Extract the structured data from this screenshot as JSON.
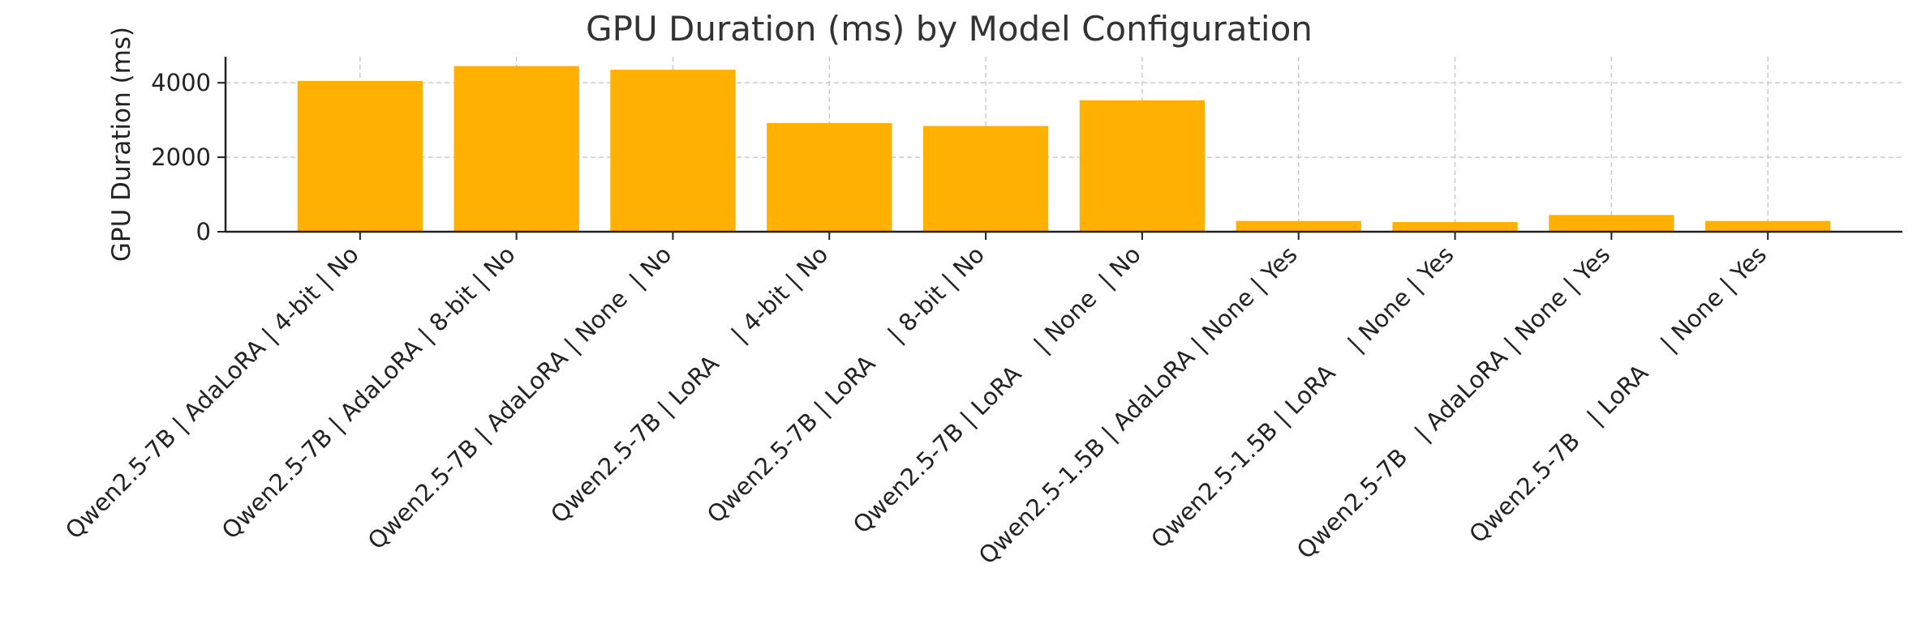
{
  "chart_data": {
    "type": "bar",
    "title": "GPU Duration (ms) by Model Configuration",
    "xlabel": "",
    "ylabel": "GPU Duration (ms)",
    "ylim": [
      0,
      4700
    ],
    "yticks": [
      0,
      2000,
      4000
    ],
    "grid": true,
    "bar_color": "#FFB000",
    "categories": [
      "Qwen2.5-7B | AdaLoRA | 4-bit | No",
      "Qwen2.5-7B | AdaLoRA | 8-bit | No",
      "Qwen2.5-7B | AdaLoRA | None  | No",
      "Qwen2.5-7B | LoRA    | 4-bit | No",
      "Qwen2.5-7B | LoRA    | 8-bit | No",
      "Qwen2.5-7B | LoRA    | None  | No",
      "Qwen2.5-1.5B | AdaLoRA | None | Yes",
      "Qwen2.5-1.5B | LoRA    | None | Yes",
      "Qwen2.5-7B   | AdaLoRA | None | Yes",
      "Qwen2.5-7B   | LoRA    | None | Yes"
    ],
    "values": [
      4050,
      4450,
      4350,
      2920,
      2840,
      3530,
      290,
      260,
      450,
      290
    ]
  }
}
